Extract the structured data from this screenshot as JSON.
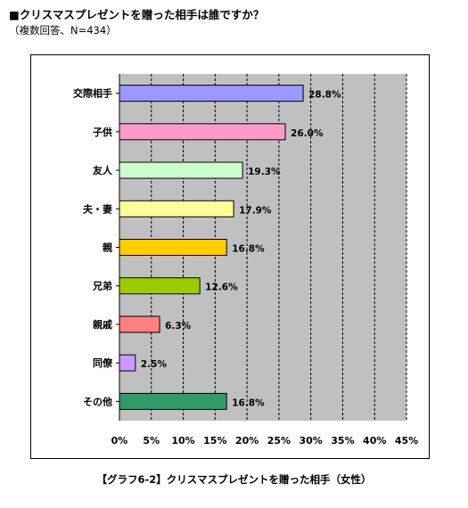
{
  "header": {
    "title": "■クリスマスプレゼントを贈った相手は誰ですか？",
    "subtitle": "（複数回答、N=434）"
  },
  "caption": "【グラフ6-2】クリスマスプレゼントを贈った相手（女性）",
  "colors": {
    "plot_background": "#c0c0c0",
    "gridline": "#000000"
  },
  "chart_data": {
    "type": "bar",
    "orientation": "horizontal",
    "categories": [
      "交際相手",
      "子供",
      "友人",
      "夫・妻",
      "親",
      "兄弟",
      "親戚",
      "同僚",
      "その他"
    ],
    "values": [
      28.8,
      26.0,
      19.3,
      17.9,
      16.8,
      12.6,
      6.3,
      2.5,
      16.8
    ],
    "value_labels": [
      "28.8%",
      "26.0%",
      "19.3%",
      "17.9%",
      "16.8%",
      "12.6%",
      "6.3%",
      "2.5%",
      "16.8%"
    ],
    "bar_colors": [
      "#9999ff",
      "#ff99cc",
      "#ccffcc",
      "#ffff99",
      "#ffcc00",
      "#99cc00",
      "#ff8080",
      "#cc99ff",
      "#339966"
    ],
    "xlim": [
      0,
      45
    ],
    "xticks": [
      0,
      5,
      10,
      15,
      20,
      25,
      30,
      35,
      40,
      45
    ],
    "xtick_labels": [
      "0%",
      "5%",
      "10%",
      "15%",
      "20%",
      "25%",
      "30%",
      "35%",
      "40%",
      "45%"
    ],
    "grid": "vertical dashed",
    "legend": "none"
  }
}
